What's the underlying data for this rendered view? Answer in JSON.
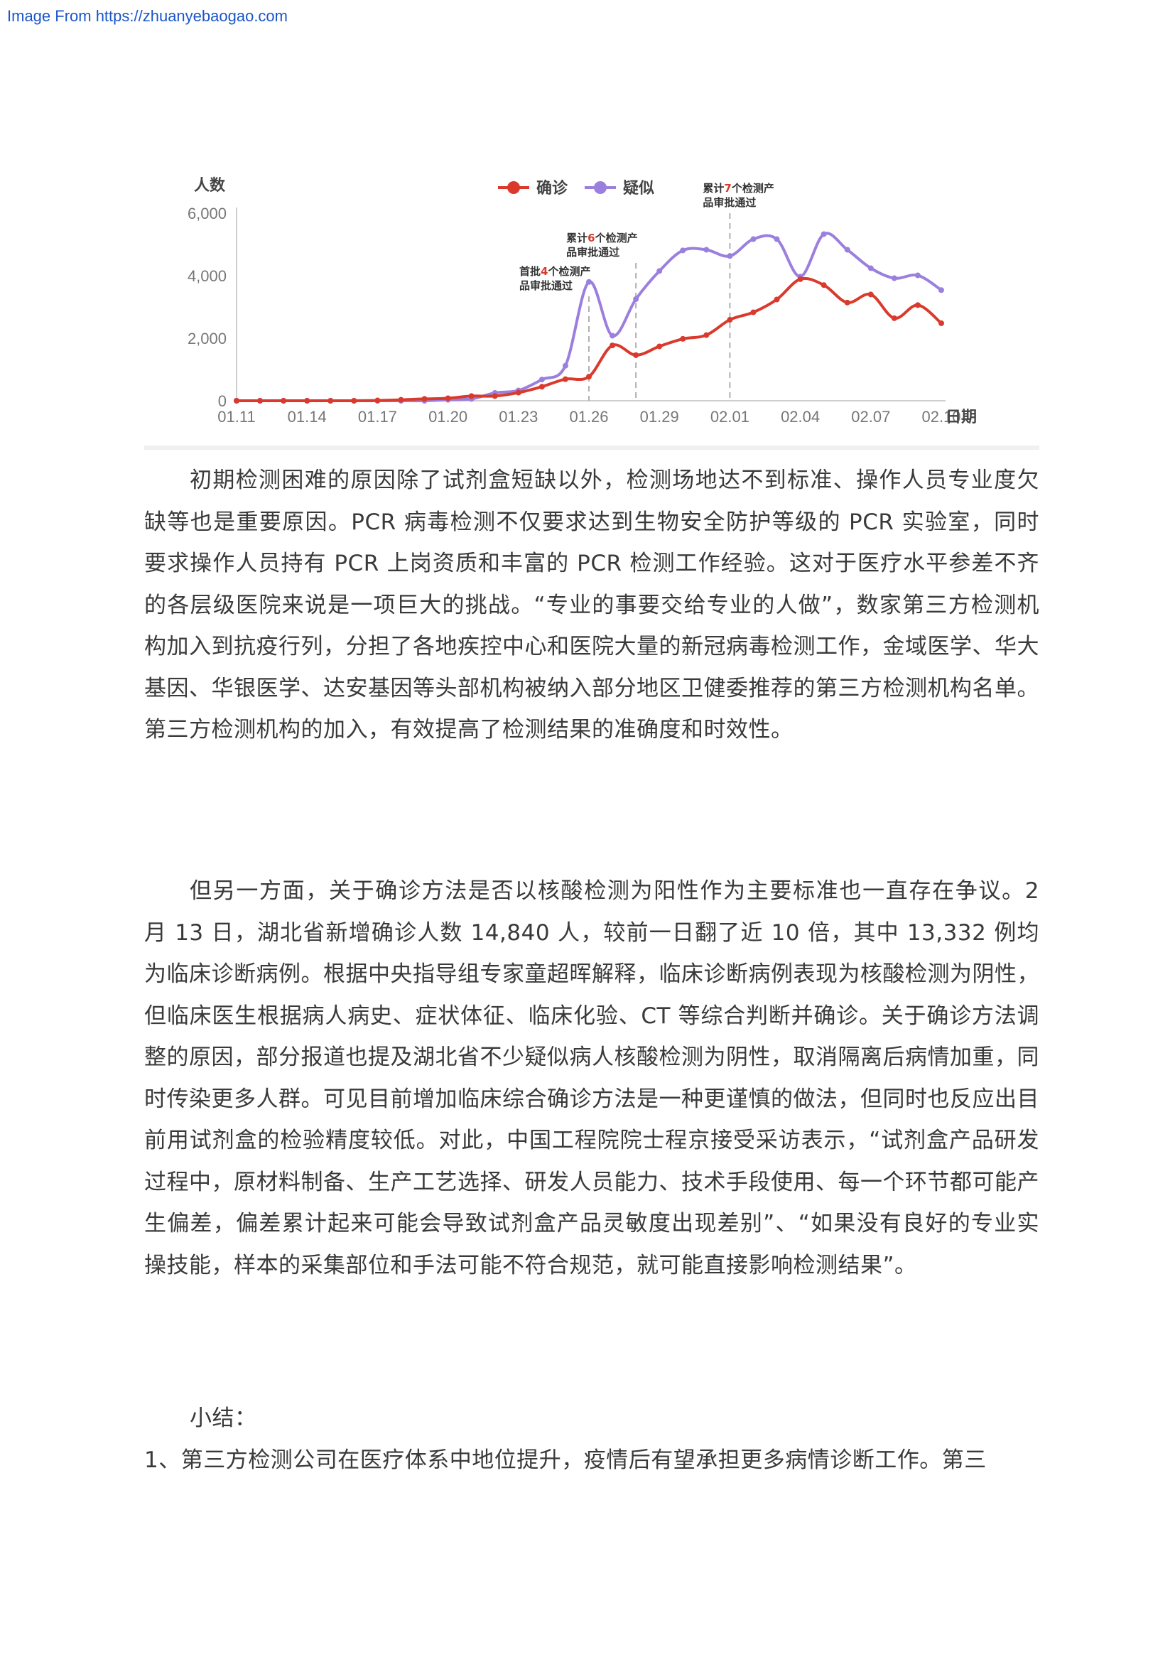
{
  "header": {
    "watermark": "Image From https://zhuanyebaogao.com"
  },
  "chart_data": {
    "type": "line",
    "ylabel": "人数",
    "xlabel": "日期",
    "ylim": [
      0,
      6000
    ],
    "yticks": [
      0,
      2000,
      4000,
      6000
    ],
    "ytick_labels": [
      "0",
      "2,000",
      "4,000",
      "6,000"
    ],
    "xtick_labels": [
      "01.11",
      "01.14",
      "01.17",
      "01.20",
      "01.23",
      "01.26",
      "01.29",
      "02.01",
      "02.04",
      "02.07",
      "02.10"
    ],
    "x": [
      "01.11",
      "01.12",
      "01.13",
      "01.14",
      "01.15",
      "01.16",
      "01.17",
      "01.18",
      "01.19",
      "01.20",
      "01.21",
      "01.22",
      "01.23",
      "01.24",
      "01.25",
      "01.26",
      "01.27",
      "01.28",
      "01.29",
      "01.30",
      "01.31",
      "02.01",
      "02.02",
      "02.03",
      "02.04",
      "02.05",
      "02.06",
      "02.07",
      "02.08",
      "02.09",
      "02.10"
    ],
    "series": [
      {
        "name": "确诊",
        "color": "#d93a2b",
        "values": [
          0,
          0,
          0,
          0,
          0,
          0,
          10,
          30,
          60,
          80,
          150,
          150,
          260,
          450,
          690,
          770,
          1770,
          1460,
          1740,
          1980,
          2100,
          2590,
          2830,
          3240,
          3890,
          3700,
          3140,
          3400,
          2640,
          3060,
          2480
        ]
      },
      {
        "name": "疑似",
        "color": "#9b7fde",
        "values": [
          0,
          0,
          0,
          0,
          0,
          0,
          0,
          0,
          0,
          30,
          60,
          250,
          330,
          680,
          1120,
          3800,
          2080,
          3250,
          4150,
          4810,
          4830,
          4630,
          5170,
          5170,
          3970,
          5330,
          4830,
          4240,
          3920,
          4010,
          3540
        ]
      }
    ],
    "annotations": [
      {
        "x": "01.26",
        "text_lines": [
          "首批",
          "4",
          "个检测产",
          "品审批通过"
        ]
      },
      {
        "x": "01.28",
        "text_lines": [
          "累计",
          "6",
          "个检测产",
          "品审批通过"
        ]
      },
      {
        "x": "02.01",
        "text_lines": [
          "累计",
          "7",
          "个检测产",
          "品审批通过"
        ]
      }
    ],
    "grid": "none",
    "legend": "top-center"
  },
  "body": {
    "paragraphs": [
      "初期检测困难的原因除了试剂盒短缺以外，检测场地达不到标准、操作人员专业度欠缺等也是重要原因。PCR 病毒检测不仅要求达到生物安全防护等级的 PCR 实验室，同时要求操作人员持有 PCR 上岗资质和丰富的 PCR 检测工作经验。这对于医疗水平参差不齐的各层级医院来说是一项巨大的挑战。“专业的事要交给专业的人做”，数家第三方检测机构加入到抗疫行列，分担了各地疾控中心和医院大量的新冠病毒检测工作，金域医学、华大基因、华银医学、达安基因等头部机构被纳入部分地区卫健委推荐的第三方检测机构名单。第三方检测机构的加入，有效提高了检测结果的准确度和时效性。",
      "但另一方面，关于确诊方法是否以核酸检测为阳性作为主要标准也一直存在争议。2 月 13 日，湖北省新增确诊人数 14,840 人，较前一日翻了近 10 倍，其中 13,332 例均为临床诊断病例。根据中央指导组专家童超晖解释，临床诊断病例表现为核酸检测为阴性，但临床医生根据病人病史、症状体征、临床化验、CT 等综合判断并确诊。关于确诊方法调整的原因，部分报道也提及湖北省不少疑似病人核酸检测为阴性，取消隔离后病情加重，同时传染更多人群。可见目前增加临床综合确诊方法是一种更谨慎的做法，但同时也反应出目前用试剂盒的检验精度较低。对此，中国工程院院士程京接受采访表示，“试剂盒产品研发过程中，原材料制备、生产工艺选择、研发人员能力、技术手段使用、每一个环节都可能产生偏差，偏差累计起来可能会导致试剂盒产品灵敏度出现差别”、“如果没有良好的专业实操技能，样本的采集部位和手法可能不符合规范，就可能直接影响检测结果”。"
    ],
    "summary_heading": "小结：",
    "summary_item_1": "1、第三方检测公司在医疗体系中地位提升，疫情后有望承担更多病情诊断工作。第三"
  }
}
